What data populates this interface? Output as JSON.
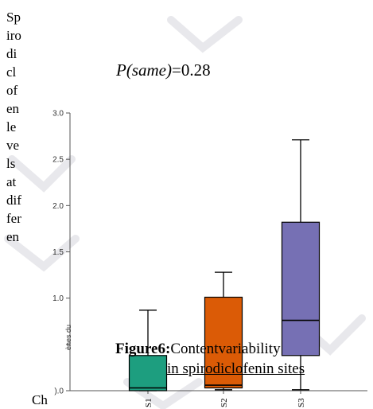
{
  "side_text_lines": [
    "Sp",
    "iro",
    "di",
    "cl",
    "of",
    "en",
    "le",
    "ve",
    "ls",
    "at",
    "dif",
    "fer",
    "en"
  ],
  "bottom_left_text": "Ch",
  "p_label_italic": "P(same)",
  "p_label_value": "=0.28",
  "caption": {
    "label": "Figure6:",
    "line1": "Contentvariability",
    "line2": "in spirodiclofenin sites"
  },
  "chart_data": {
    "type": "boxplot",
    "title": "P(same)=0.28",
    "ylabel": "ènes du",
    "ylim": [
      0,
      3.0
    ],
    "yticks": [
      0,
      0.5,
      1.0,
      1.5,
      2.0,
      2.5,
      3.0
    ],
    "ytick_labels": [
      ").0",
      "",
      "1.0",
      "1.5",
      "2.0",
      "2.5",
      "3.0"
    ],
    "categories": [
      "S1",
      "S2",
      "S3"
    ],
    "boxes": [
      {
        "name": "S1",
        "min": 0.0,
        "q1": 0.0,
        "median": 0.03,
        "q3": 0.38,
        "max": 0.87,
        "color": "#1d9e7f"
      },
      {
        "name": "S2",
        "min": 0.01,
        "q1": 0.03,
        "median": 0.06,
        "q3": 1.01,
        "max": 1.28,
        "color": "#db5b06"
      },
      {
        "name": "S3",
        "min": 0.01,
        "q1": 0.38,
        "median": 0.76,
        "q3": 1.82,
        "max": 2.71,
        "color": "#7670b4"
      }
    ],
    "grid": false
  }
}
